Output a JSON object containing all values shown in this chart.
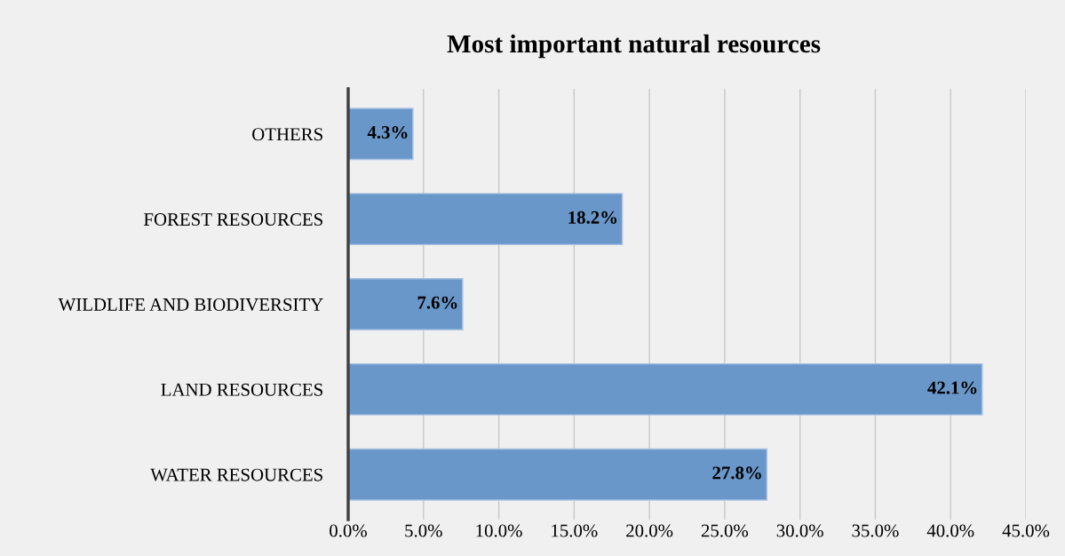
{
  "chart_data": {
    "type": "bar",
    "orientation": "horizontal",
    "title": "Most important natural resources",
    "categories": [
      "OTHERS",
      "FOREST RESOURCES",
      "WILDLIFE AND BIODIVERSITY",
      "LAND RESOURCES",
      "WATER RESOURCES"
    ],
    "values": [
      4.3,
      18.2,
      7.6,
      42.1,
      27.8
    ],
    "value_labels": [
      "4.3%",
      "18.2%",
      "7.6%",
      "42.1%",
      "27.8%"
    ],
    "color": "#6a97c9",
    "xlim": [
      0,
      45
    ],
    "xticks": [
      {
        "value": 0,
        "label": "0.0%"
      },
      {
        "value": 5,
        "label": "5.0%"
      },
      {
        "value": 10,
        "label": "10.0%"
      },
      {
        "value": 15,
        "label": "15.0%"
      },
      {
        "value": 20,
        "label": "20.0%"
      },
      {
        "value": 25,
        "label": "25.0%"
      },
      {
        "value": 30,
        "label": "30.0%"
      },
      {
        "value": 35,
        "label": "35.0%"
      },
      {
        "value": 40,
        "label": "40.0%"
      },
      {
        "value": 45,
        "label": "45.0%"
      }
    ],
    "grid": "x",
    "legend": false
  }
}
